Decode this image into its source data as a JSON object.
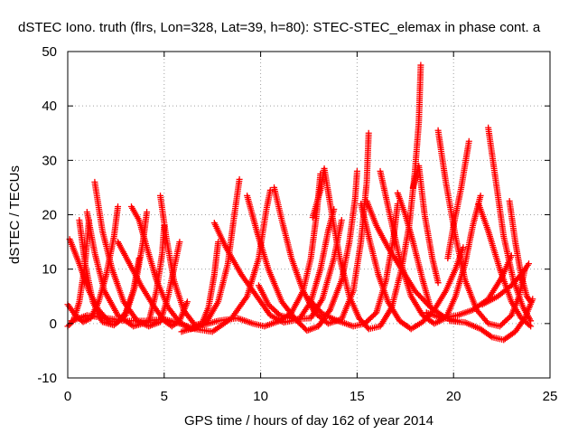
{
  "chart_data": {
    "type": "scatter",
    "title": "dSTEC Iono. truth (flrs, Lon=328, Lat=39, h=80): STEC-STEC_elemax in phase cont. a",
    "xlabel": "GPS time / hours of day 162 of year 2014",
    "ylabel": "dSTEC  / TECUs",
    "xlim": [
      0,
      25
    ],
    "ylim": [
      -10,
      50
    ],
    "xticks": [
      0,
      5,
      10,
      15,
      20,
      25
    ],
    "yticks": [
      -10,
      0,
      10,
      20,
      30,
      40,
      50
    ],
    "xtick_labels": [
      "0",
      "5",
      "10",
      "15",
      "20",
      "25"
    ],
    "ytick_labels": [
      "-10",
      "0",
      "10",
      "20",
      "30",
      "40",
      "50"
    ],
    "grid": true,
    "marker": "+",
    "color": "#ff0000",
    "series": [
      {
        "points": [
          [
            0.0,
            3.5
          ],
          [
            0.4,
            1.5
          ],
          [
            0.8,
            0.3
          ],
          [
            1.2,
            1.0
          ],
          [
            1.6,
            4.0
          ],
          [
            2.0,
            9.0
          ],
          [
            2.4,
            16.0
          ],
          [
            2.6,
            21.5
          ]
        ]
      },
      {
        "points": [
          [
            0.1,
            15.5
          ],
          [
            0.6,
            11.0
          ],
          [
            1.1,
            6.0
          ],
          [
            1.6,
            2.5
          ],
          [
            2.1,
            0.5
          ],
          [
            2.6,
            0.3
          ],
          [
            3.0,
            2.0
          ],
          [
            3.4,
            6.0
          ],
          [
            3.7,
            12.0
          ]
        ]
      },
      {
        "points": [
          [
            0.0,
            -0.5
          ],
          [
            0.3,
            0.5
          ],
          [
            0.6,
            4.0
          ],
          [
            0.9,
            11.0
          ],
          [
            1.1,
            19.0
          ]
        ]
      },
      {
        "points": [
          [
            0.6,
            19.0
          ],
          [
            0.9,
            11.0
          ],
          [
            1.3,
            4.0
          ],
          [
            1.8,
            0.3
          ],
          [
            2.4,
            -0.3
          ],
          [
            3.0,
            1.5
          ],
          [
            3.5,
            7.0
          ],
          [
            3.9,
            15.0
          ],
          [
            4.1,
            20.5
          ]
        ]
      },
      {
        "points": [
          [
            1.0,
            20.5
          ],
          [
            1.4,
            13.0
          ],
          [
            1.9,
            6.0
          ],
          [
            2.6,
            1.5
          ],
          [
            3.4,
            -0.5
          ],
          [
            4.2,
            0.3
          ],
          [
            4.6,
            6.0
          ],
          [
            4.9,
            13.0
          ],
          [
            5.0,
            18.0
          ]
        ]
      },
      {
        "points": [
          [
            1.4,
            26.0
          ],
          [
            1.8,
            17.0
          ],
          [
            2.3,
            10.0
          ],
          [
            2.9,
            4.0
          ],
          [
            3.6,
            0.5
          ],
          [
            4.2,
            -0.5
          ],
          [
            4.8,
            0.3
          ],
          [
            5.2,
            5.0
          ],
          [
            5.5,
            10.0
          ],
          [
            5.8,
            15.0
          ]
        ]
      },
      {
        "points": [
          [
            2.6,
            15.0
          ],
          [
            3.2,
            11.0
          ],
          [
            3.8,
            7.0
          ],
          [
            4.4,
            3.5
          ],
          [
            5.0,
            0.5
          ],
          [
            5.4,
            -0.5
          ],
          [
            5.8,
            0.5
          ],
          [
            6.2,
            4.0
          ]
        ]
      },
      {
        "points": [
          [
            3.3,
            21.5
          ],
          [
            3.7,
            19.0
          ],
          [
            4.1,
            14.0
          ],
          [
            4.6,
            8.0
          ],
          [
            5.2,
            3.0
          ],
          [
            5.8,
            0.2
          ],
          [
            6.4,
            -1.0
          ],
          [
            6.9,
            -0.5
          ],
          [
            7.3,
            3.0
          ],
          [
            7.6,
            9.0
          ],
          [
            7.8,
            15.0
          ]
        ]
      },
      {
        "points": [
          [
            4.8,
            23.5
          ],
          [
            5.1,
            16.0
          ],
          [
            5.5,
            8.0
          ],
          [
            6.0,
            2.5
          ],
          [
            6.6,
            -0.3
          ],
          [
            7.2,
            0.3
          ],
          [
            7.8,
            4.0
          ],
          [
            8.3,
            11.0
          ],
          [
            8.6,
            19.0
          ],
          [
            8.9,
            26.5
          ]
        ]
      },
      {
        "points": [
          [
            0.2,
            0.5
          ],
          [
            1.0,
            1.5
          ],
          [
            2.0,
            1.0
          ],
          [
            3.0,
            0.5
          ],
          [
            4.0,
            0.5
          ],
          [
            5.0,
            0.8
          ],
          [
            5.8,
            0.0
          ],
          [
            6.6,
            -1.0
          ],
          [
            7.5,
            -1.5
          ],
          [
            8.5,
            1.0
          ],
          [
            9.3,
            5.0
          ],
          [
            9.9,
            12.0
          ],
          [
            10.3,
            21.0
          ],
          [
            10.5,
            24.5
          ]
        ]
      },
      {
        "points": [
          [
            5.9,
            -1.5
          ],
          [
            6.8,
            -0.5
          ],
          [
            7.8,
            0.5
          ],
          [
            8.8,
            1.0
          ],
          [
            9.6,
            0.0
          ],
          [
            10.2,
            -0.5
          ],
          [
            11.0,
            0.5
          ],
          [
            11.6,
            2.0
          ],
          [
            12.2,
            6.0
          ],
          [
            12.6,
            12.0
          ],
          [
            12.9,
            20.0
          ],
          [
            13.1,
            27.5
          ]
        ]
      },
      {
        "points": [
          [
            7.6,
            18.5
          ],
          [
            8.2,
            14.0
          ],
          [
            9.0,
            9.0
          ],
          [
            9.8,
            5.0
          ],
          [
            10.5,
            1.5
          ],
          [
            11.2,
            0.2
          ],
          [
            12.0,
            0.8
          ],
          [
            12.6,
            4.0
          ],
          [
            13.1,
            10.0
          ],
          [
            13.5,
            17.0
          ],
          [
            13.8,
            21.0
          ]
        ]
      },
      {
        "points": [
          [
            9.3,
            23.5
          ],
          [
            9.8,
            17.0
          ],
          [
            10.4,
            10.0
          ],
          [
            11.1,
            4.0
          ],
          [
            11.8,
            0.8
          ],
          [
            12.4,
            -1.3
          ],
          [
            13.0,
            -0.5
          ],
          [
            13.6,
            2.5
          ],
          [
            14.2,
            8.0
          ],
          [
            14.6,
            15.0
          ],
          [
            14.9,
            23.0
          ],
          [
            15.0,
            28.0
          ]
        ]
      },
      {
        "points": [
          [
            9.9,
            7.0
          ],
          [
            10.4,
            3.5
          ],
          [
            11.0,
            1.5
          ],
          [
            11.8,
            0.8
          ],
          [
            12.6,
            1.0
          ],
          [
            13.2,
            4.5
          ],
          [
            13.8,
            12.0
          ],
          [
            14.2,
            19.0
          ]
        ]
      },
      {
        "points": [
          [
            10.7,
            25.0
          ],
          [
            11.1,
            19.0
          ],
          [
            11.6,
            12.0
          ],
          [
            12.2,
            6.0
          ],
          [
            12.8,
            2.0
          ],
          [
            13.5,
            0.0
          ],
          [
            14.2,
            0.8
          ],
          [
            14.8,
            6.0
          ],
          [
            15.2,
            15.0
          ],
          [
            15.5,
            26.0
          ],
          [
            15.6,
            35.0
          ]
        ]
      },
      {
        "points": [
          [
            12.5,
            4.5
          ],
          [
            13.2,
            1.8
          ],
          [
            14.0,
            0.5
          ],
          [
            14.8,
            -0.5
          ],
          [
            15.4,
            0.0
          ],
          [
            16.0,
            2.0
          ],
          [
            16.5,
            8.0
          ],
          [
            16.9,
            16.0
          ],
          [
            17.1,
            22.0
          ]
        ]
      },
      {
        "points": [
          [
            12.7,
            19.5
          ],
          [
            13.1,
            24.5
          ],
          [
            13.3,
            28.5
          ],
          [
            13.7,
            20.0
          ],
          [
            14.1,
            12.0
          ],
          [
            14.6,
            5.0
          ],
          [
            15.1,
            1.0
          ],
          [
            15.6,
            -1.0
          ],
          [
            16.2,
            -0.5
          ],
          [
            16.8,
            3.0
          ],
          [
            17.3,
            10.0
          ],
          [
            17.7,
            18.0
          ],
          [
            18.0,
            28.0
          ],
          [
            18.2,
            37.0
          ],
          [
            18.3,
            47.5
          ]
        ]
      },
      {
        "points": [
          [
            15.2,
            22.0
          ],
          [
            15.6,
            16.0
          ],
          [
            16.1,
            9.0
          ],
          [
            16.6,
            4.0
          ],
          [
            17.2,
            0.5
          ],
          [
            17.8,
            -1.0
          ],
          [
            18.4,
            0.3
          ],
          [
            19.0,
            2.5
          ],
          [
            19.6,
            6.0
          ],
          [
            20.1,
            10.0
          ],
          [
            20.5,
            14.0
          ]
        ]
      },
      {
        "points": [
          [
            15.5,
            22.5
          ],
          [
            16.0,
            18.0
          ],
          [
            16.6,
            14.0
          ],
          [
            17.3,
            10.0
          ],
          [
            18.0,
            6.0
          ],
          [
            18.8,
            3.0
          ],
          [
            19.6,
            1.0
          ],
          [
            20.2,
            0.5
          ]
        ]
      },
      {
        "points": [
          [
            16.2,
            28.0
          ],
          [
            16.7,
            20.0
          ],
          [
            17.2,
            12.0
          ],
          [
            17.8,
            5.0
          ],
          [
            18.4,
            1.5
          ],
          [
            19.0,
            0.0
          ],
          [
            19.6,
            1.0
          ],
          [
            20.1,
            5.0
          ],
          [
            20.6,
            11.0
          ],
          [
            21.0,
            18.0
          ],
          [
            21.4,
            23.5
          ]
        ]
      },
      {
        "points": [
          [
            17.1,
            24.0
          ],
          [
            17.5,
            20.0
          ],
          [
            17.9,
            15.0
          ],
          [
            18.4,
            8.0
          ],
          [
            18.8,
            3.0
          ]
        ]
      },
      {
        "points": [
          [
            17.9,
            25.0
          ],
          [
            18.2,
            29.0
          ],
          [
            18.5,
            20.0
          ],
          [
            18.9,
            12.0
          ],
          [
            19.2,
            7.5
          ]
        ]
      },
      {
        "points": [
          [
            19.2,
            35.5
          ],
          [
            19.6,
            26.0
          ],
          [
            20.1,
            16.0
          ],
          [
            20.6,
            8.0
          ],
          [
            21.2,
            2.5
          ],
          [
            21.8,
            0.0
          ],
          [
            22.4,
            -0.5
          ],
          [
            23.0,
            1.5
          ],
          [
            23.4,
            5.0
          ],
          [
            23.7,
            10.0
          ]
        ]
      },
      {
        "points": [
          [
            20.8,
            33.5
          ],
          [
            20.4,
            25.0
          ],
          [
            20.0,
            18.0
          ],
          [
            19.7,
            12.0
          ]
        ]
      },
      {
        "points": [
          [
            21.8,
            36.0
          ],
          [
            22.2,
            26.0
          ],
          [
            22.6,
            16.0
          ],
          [
            23.1,
            8.0
          ],
          [
            23.6,
            3.0
          ],
          [
            24.0,
            0.5
          ]
        ]
      },
      {
        "points": [
          [
            18.6,
            2.0
          ],
          [
            19.4,
            1.0
          ],
          [
            20.2,
            1.5
          ],
          [
            21.0,
            2.5
          ],
          [
            21.8,
            4.5
          ],
          [
            22.5,
            8.5
          ],
          [
            23.0,
            12.5
          ]
        ]
      },
      {
        "points": [
          [
            19.8,
            0.5
          ],
          [
            20.6,
            0.2
          ],
          [
            21.4,
            -1.0
          ],
          [
            22.0,
            -2.5
          ],
          [
            22.6,
            -3.0
          ],
          [
            23.2,
            -1.5
          ],
          [
            23.7,
            1.0
          ],
          [
            24.1,
            4.5
          ]
        ]
      },
      {
        "points": [
          [
            21.3,
            22.0
          ],
          [
            21.8,
            17.0
          ],
          [
            22.4,
            10.0
          ],
          [
            23.0,
            4.0
          ],
          [
            23.5,
            1.0
          ],
          [
            24.0,
            -0.5
          ]
        ]
      },
      {
        "points": [
          [
            22.9,
            22.5
          ],
          [
            23.2,
            15.0
          ],
          [
            23.5,
            9.0
          ],
          [
            23.8,
            5.0
          ],
          [
            24.0,
            4.0
          ]
        ]
      },
      {
        "points": [
          [
            21.5,
            3.5
          ],
          [
            22.3,
            5.0
          ],
          [
            23.0,
            7.0
          ],
          [
            23.5,
            9.0
          ],
          [
            23.9,
            11.0
          ]
        ]
      }
    ]
  }
}
